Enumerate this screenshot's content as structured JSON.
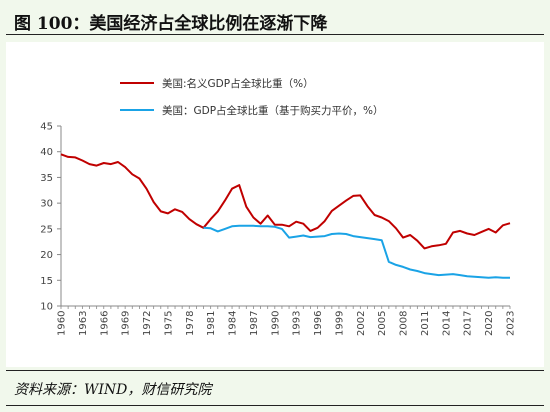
{
  "header": {
    "title": "图 100：美国经济占全球比例在逐渐下降"
  },
  "footer": {
    "source": "资料来源：WIND，财信研究院"
  },
  "chart_data": {
    "type": "line",
    "title": "",
    "xlabel": "",
    "ylabel": "",
    "ylim": [
      10,
      45
    ],
    "yticks": [
      10,
      15,
      20,
      25,
      30,
      35,
      40,
      45
    ],
    "xlim": [
      1960,
      2023
    ],
    "xticks": [
      1960,
      1963,
      1966,
      1969,
      1972,
      1975,
      1978,
      1981,
      1984,
      1987,
      1990,
      1993,
      1996,
      1999,
      2002,
      2005,
      2008,
      2011,
      2014,
      2017,
      2020,
      2023
    ],
    "grid": false,
    "legend_position": "top-left",
    "series": [
      {
        "name": "美国:名义GDP占全球比重（%）",
        "color": "#c00000",
        "x": [
          1960,
          1961,
          1962,
          1963,
          1964,
          1965,
          1966,
          1967,
          1968,
          1969,
          1970,
          1971,
          1972,
          1973,
          1974,
          1975,
          1976,
          1977,
          1978,
          1979,
          1980,
          1981,
          1982,
          1983,
          1984,
          1985,
          1986,
          1987,
          1988,
          1989,
          1990,
          1991,
          1992,
          1993,
          1994,
          1995,
          1996,
          1997,
          1998,
          1999,
          2000,
          2001,
          2002,
          2003,
          2004,
          2005,
          2006,
          2007,
          2008,
          2009,
          2010,
          2011,
          2012,
          2013,
          2014,
          2015,
          2016,
          2017,
          2018,
          2019,
          2020,
          2021,
          2022,
          2023
        ],
        "y": [
          39.5,
          39.0,
          38.9,
          38.3,
          37.6,
          37.3,
          37.8,
          37.6,
          38.0,
          37.0,
          35.6,
          34.8,
          32.8,
          30.2,
          28.4,
          28.0,
          28.8,
          28.3,
          26.9,
          25.9,
          25.2,
          26.9,
          28.4,
          30.5,
          32.8,
          33.5,
          29.3,
          27.2,
          26.0,
          27.6,
          25.8,
          25.8,
          25.5,
          26.4,
          26.0,
          24.6,
          25.2,
          26.5,
          28.5,
          29.5,
          30.5,
          31.4,
          31.5,
          29.4,
          27.7,
          27.2,
          26.5,
          25.1,
          23.3,
          23.8,
          22.7,
          21.2,
          21.6,
          21.8,
          22.1,
          24.3,
          24.6,
          24.1,
          23.8,
          24.4,
          25.0,
          24.3,
          25.7,
          26.1
        ]
      },
      {
        "name": "美国：GDP占全球比重（基于购买力平价，%）",
        "color": "#1aa3e6",
        "x": [
          1980,
          1981,
          1982,
          1983,
          1984,
          1985,
          1986,
          1987,
          1988,
          1989,
          1990,
          1991,
          1992,
          1993,
          1994,
          1995,
          1996,
          1997,
          1998,
          1999,
          2000,
          2001,
          2002,
          2003,
          2004,
          2005,
          2006,
          2007,
          2008,
          2009,
          2010,
          2011,
          2012,
          2013,
          2014,
          2015,
          2016,
          2017,
          2018,
          2019,
          2020,
          2021,
          2022,
          2023
        ],
        "y": [
          25.2,
          25.1,
          24.5,
          25.0,
          25.5,
          25.6,
          25.6,
          25.6,
          25.5,
          25.5,
          25.4,
          25.0,
          23.3,
          23.5,
          23.7,
          23.4,
          23.5,
          23.6,
          24.0,
          24.1,
          24.0,
          23.6,
          23.4,
          23.2,
          23.0,
          22.8,
          18.6,
          18.0,
          17.6,
          17.1,
          16.8,
          16.4,
          16.2,
          16.0,
          16.1,
          16.2,
          16.0,
          15.8,
          15.7,
          15.6,
          15.5,
          15.6,
          15.5,
          15.5
        ]
      }
    ]
  }
}
